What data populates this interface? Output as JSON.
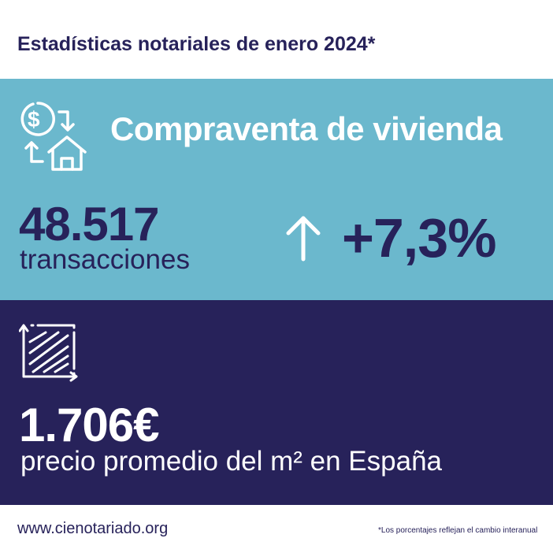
{
  "title": "Estadísticas notariales de enero 2024*",
  "section_sales": {
    "icon": "money-house-exchange-icon",
    "heading": "Compraventa de vivienda",
    "count": "48.517",
    "count_label": "transacciones",
    "trend_icon": "arrow-up-icon",
    "change": "+7,3%"
  },
  "section_price": {
    "icon": "area-square-icon",
    "price": "1.706€",
    "price_label": "precio promedio del m² en España"
  },
  "footer": {
    "website": "www.cienotariado.org",
    "note": "*Los porcentajes reflejan el cambio interanual"
  },
  "colors": {
    "navy": "#27225a",
    "light_blue": "#6bb8cd",
    "white": "#ffffff"
  }
}
